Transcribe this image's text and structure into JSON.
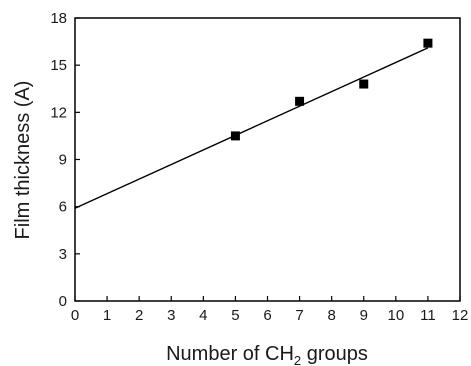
{
  "chart_data": {
    "type": "scatter",
    "title": "",
    "xlabel": "Number of CH2 groups",
    "xlabel_parts": {
      "before": "Number of CH",
      "subscript": "2",
      "after": " groups"
    },
    "ylabel": "Film thickness (A)",
    "xlim": [
      0,
      12
    ],
    "ylim": [
      0,
      18
    ],
    "xticks": [
      "0",
      "1",
      "2",
      "3",
      "4",
      "5",
      "6",
      "7",
      "8",
      "9",
      "10",
      "11",
      "12"
    ],
    "yticks": [
      "0",
      "3",
      "6",
      "9",
      "12",
      "15",
      "18"
    ],
    "grid": false,
    "series": [
      {
        "x": [
          5,
          7,
          9,
          11
        ],
        "y": [
          10.5,
          12.7,
          13.8,
          16.4
        ],
        "marker": "square",
        "color": "#000000"
      }
    ],
    "fit_line": {
      "x": [
        0,
        11
      ],
      "y": [
        5.9,
        16.1
      ],
      "color": "#000000"
    }
  }
}
